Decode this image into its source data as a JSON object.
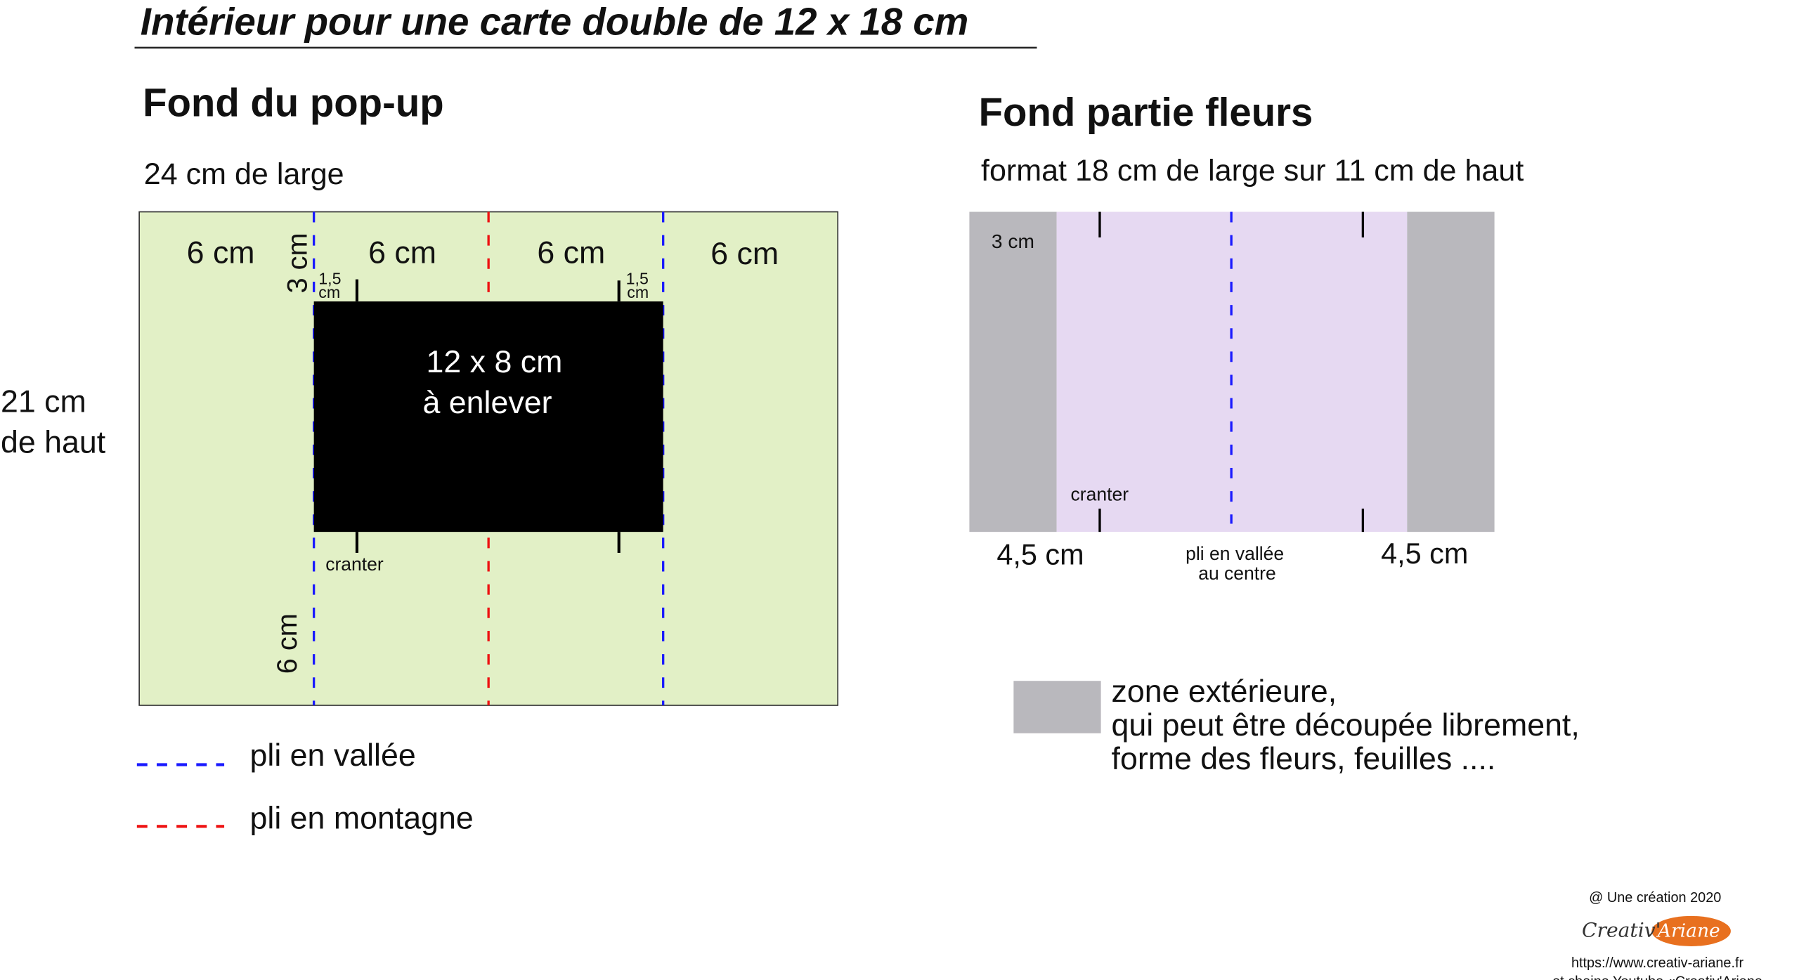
{
  "title": "Intérieur pour une carte double de 12 x 18 cm",
  "popup": {
    "heading": "Fond du pop-up",
    "width_label": "24 cm de large",
    "height_label_1": "21 cm",
    "height_label_2": "de haut",
    "columns": [
      "6 cm",
      "6 cm",
      "6 cm",
      "6 cm"
    ],
    "top_margin": "3 cm",
    "bottom_margin": "6 cm",
    "notch_offset_1": "1,5",
    "notch_offset_2": "cm",
    "cutout_1": "12 x 8 cm",
    "cutout_2": "à enlever",
    "cut_label": "cranter",
    "background_color": "#e2f0c6"
  },
  "legend": {
    "valley": "pli en vallée",
    "mountain": "pli en montagne",
    "valley_color": "#1a1aff",
    "mountain_color": "#ee1111"
  },
  "flowers": {
    "heading": "Fond partie fleurs",
    "format": "format 18 cm de large sur 11 cm de haut",
    "top_label": "3 cm",
    "cut_label": "cranter",
    "left_width": "4,5 cm",
    "right_width": "4,5 cm",
    "fold_1": "pli en vallée",
    "fold_2": "au centre",
    "inner_color": "#e6d9f2",
    "outer_color": "#b9b8bd"
  },
  "zone_legend": [
    "zone extérieure,",
    "qui peut être découpée librement,",
    "forme des fleurs, feuilles ...."
  ],
  "footer": {
    "credit": "@ Une création 2020",
    "logo_left": "Creativ'",
    "logo_right": "Ariane",
    "url": "https://www.creativ-ariane.fr",
    "channel": "et chaine Youtube «Creativ'Ariane",
    "logo_color": "#e8701f"
  }
}
